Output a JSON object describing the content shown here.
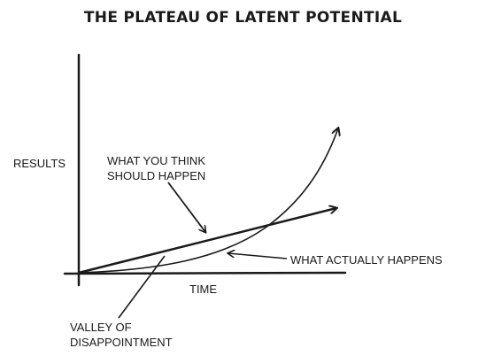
{
  "title": "THE PLATEAU OF LATENT POTENTIAL",
  "labels": {
    "y_axis": "RESULTS",
    "x_axis": "TIME",
    "expected_line_1": "WHAT YOU THINK",
    "expected_line_2": "SHOULD HAPPEN",
    "actual": "WHAT ACTUALLY HAPPENS",
    "valley_line_1": "VALLEY OF",
    "valley_line_2": "DISAPPOINTMENT"
  },
  "colors": {
    "ink": "#1a1a1a",
    "background": "#ffffff"
  }
}
